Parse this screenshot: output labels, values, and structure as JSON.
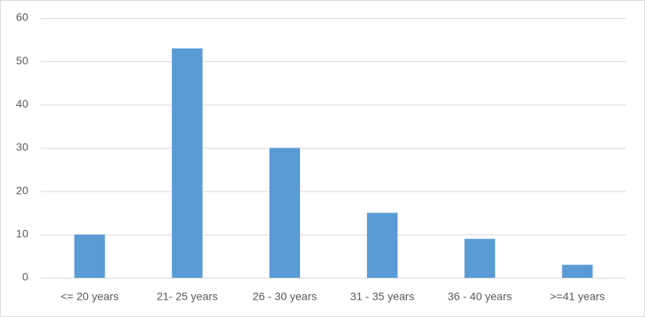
{
  "chart_data": {
    "type": "bar",
    "categories": [
      "<= 20 years",
      "21- 25 years",
      "26 - 30 years",
      "31 - 35 years",
      "36 - 40 years",
      ">=41 years"
    ],
    "values": [
      10,
      53,
      30,
      15,
      9,
      3
    ],
    "color": "#5b9bd5",
    "ylim": [
      0,
      60
    ],
    "yticks": [
      0,
      10,
      20,
      30,
      40,
      50,
      60
    ],
    "grid": true
  }
}
